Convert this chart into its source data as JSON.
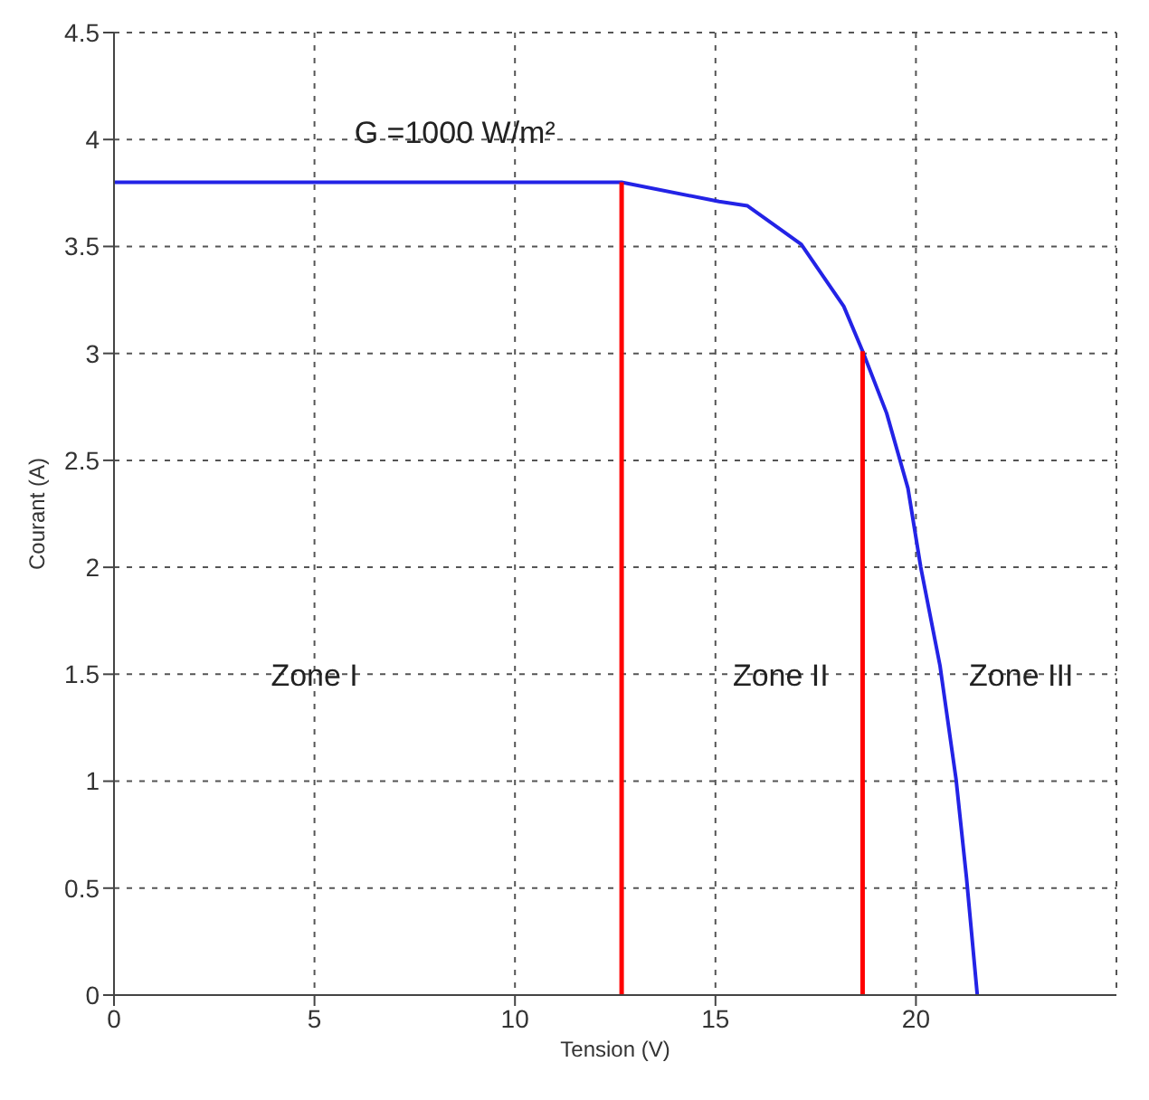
{
  "chart_data": {
    "type": "line",
    "xlabel": "Tension (V)",
    "ylabel": "Courant (A)",
    "xlim": [
      0,
      25
    ],
    "xticks": [
      0,
      5,
      10,
      15,
      20
    ],
    "ylim": [
      0,
      4.5
    ],
    "yticks": [
      0,
      0.5,
      1,
      1.5,
      2,
      2.5,
      3,
      3.5,
      4,
      4.5
    ],
    "grid": true,
    "marker": "none",
    "line_style": "solid",
    "series": [
      {
        "color": "#2323e6",
        "x": [
          0,
          5,
          10,
          12.66,
          15.09,
          15.8,
          17.14,
          18.2,
          18.67,
          19.27,
          19.8,
          20.12,
          20.6,
          21.0,
          21.26,
          21.53
        ],
        "values": [
          3.8,
          3.8,
          3.8,
          3.8,
          3.71,
          3.69,
          3.51,
          3.22,
          3.01,
          2.72,
          2.37,
          2.0,
          1.54,
          1.01,
          0.55,
          0
        ]
      },
      {
        "color": "#ff0000",
        "x": [
          12.66,
          12.66
        ],
        "values": [
          0,
          3.8
        ]
      },
      {
        "color": "#ff0000",
        "x": [
          18.67,
          18.67
        ],
        "values": [
          0,
          3.01
        ]
      }
    ],
    "annotations": [
      "G =1000 W/m²",
      "Zone I",
      "Zone II",
      "Zone III"
    ]
  }
}
